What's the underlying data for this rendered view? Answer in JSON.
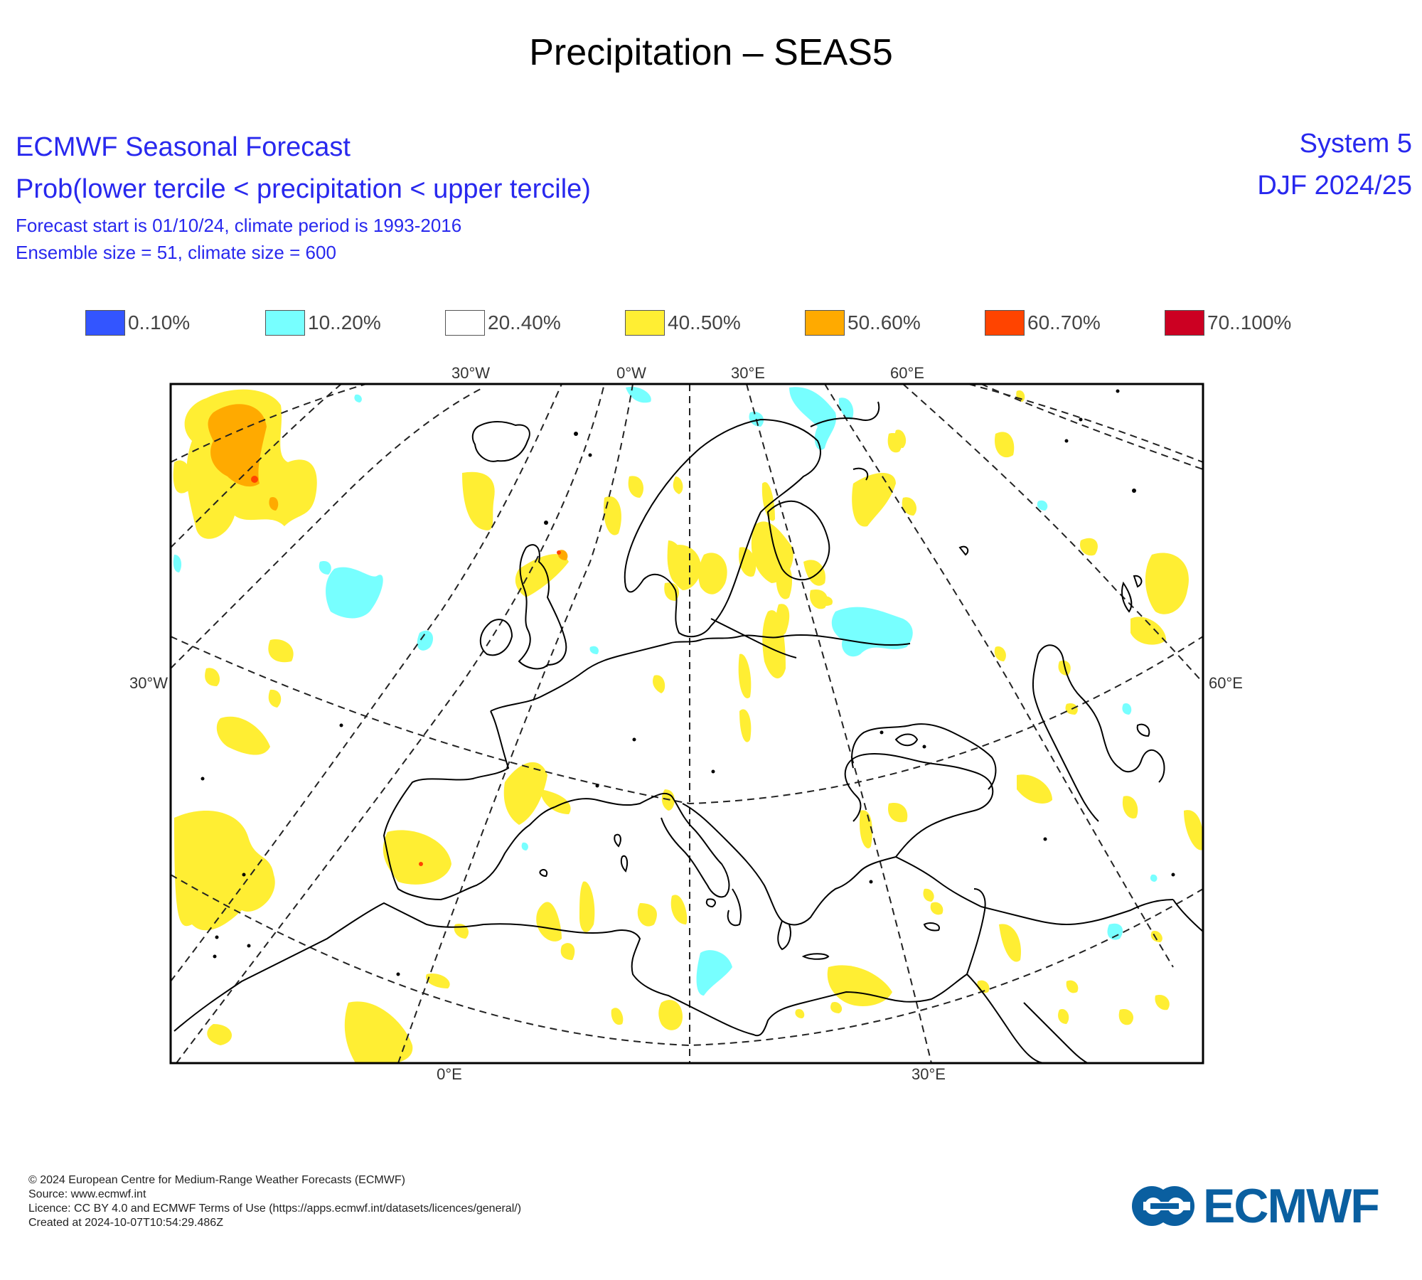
{
  "page_title": "Precipitation – SEAS5",
  "header": {
    "line1": "ECMWF Seasonal Forecast",
    "line2": "Prob(lower tercile < precipitation < upper tercile)",
    "line3": "Forecast start is 01/10/24, climate period is 1993-2016",
    "line4": "Ensemble size = 51, climate size = 600",
    "system": "System 5",
    "season": "DJF 2024/25"
  },
  "legend": [
    {
      "label": "0..10%",
      "color": "#3355ff"
    },
    {
      "label": "10..20%",
      "color": "#77ffff"
    },
    {
      "label": "20..40%",
      "color": "#ffffff"
    },
    {
      "label": "40..50%",
      "color": "#ffee33"
    },
    {
      "label": "50..60%",
      "color": "#ffaa00"
    },
    {
      "label": "60..70%",
      "color": "#ff4400"
    },
    {
      "label": "70..100%",
      "color": "#cc0022"
    }
  ],
  "map": {
    "top_labels": [
      "30°W",
      "0°W",
      "30°E",
      "60°E"
    ],
    "left_label": "30°W",
    "right_label": "60°E",
    "bottom_labels": [
      "0°E",
      "30°E"
    ]
  },
  "footer": {
    "line1": "© 2024 European Centre for Medium-Range Weather Forecasts (ECMWF)",
    "line2": "Source: www.ecmwf.int",
    "line3": "Licence: CC BY 4.0 and ECMWF Terms of Use (https://apps.ecmwf.int/datasets/licences/general/)",
    "line4": "Created at 2024-10-07T10:54:29.486Z"
  },
  "logo": {
    "text": "ECMWF",
    "color": "#0a5fa0"
  }
}
